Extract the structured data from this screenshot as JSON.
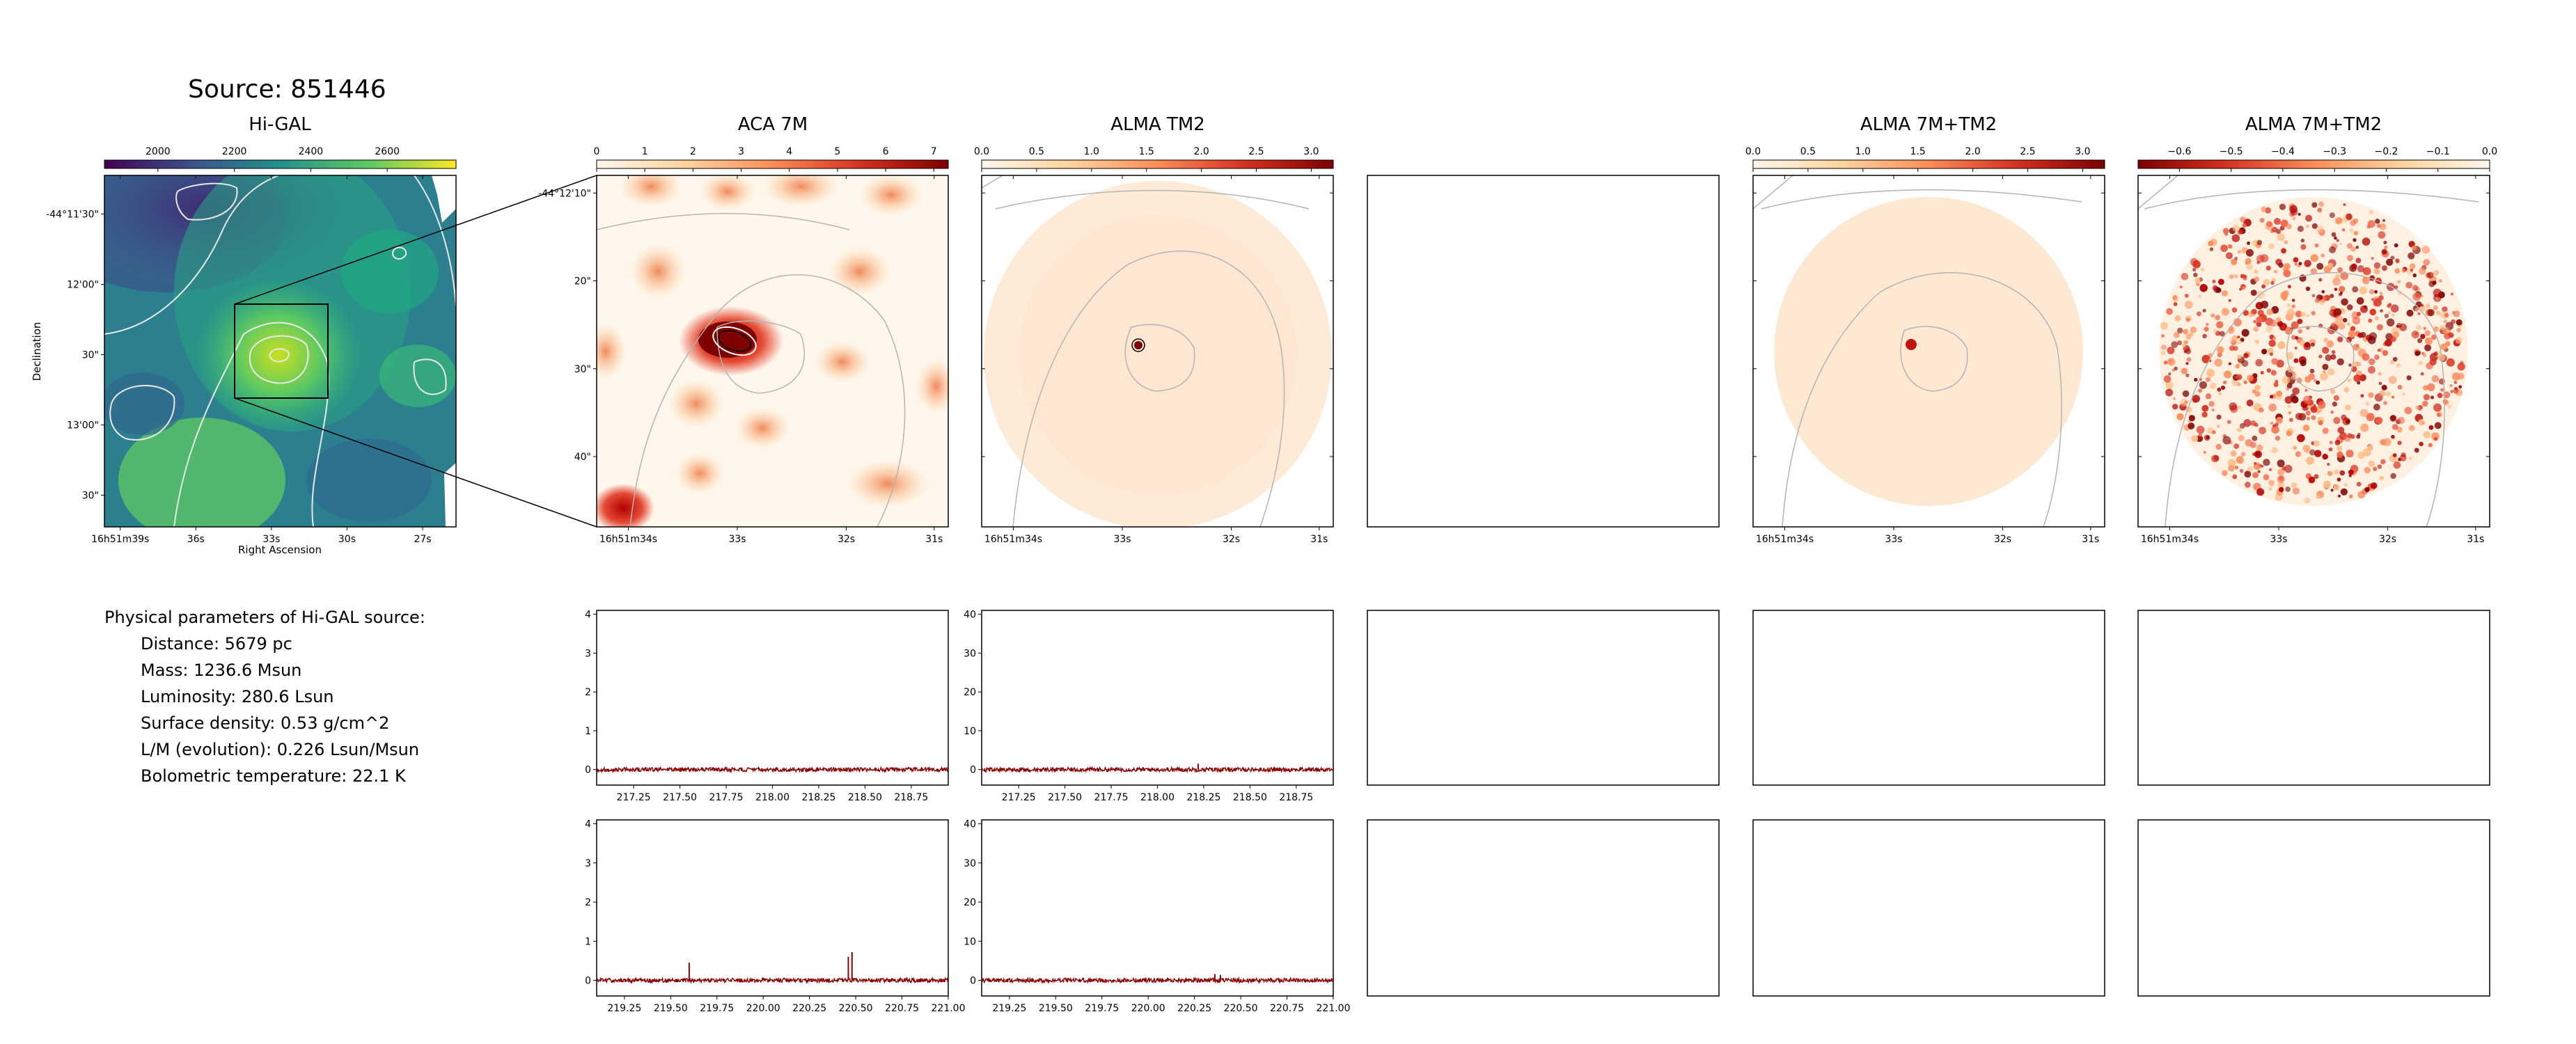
{
  "source_title": "Source: 851446",
  "physical_params": {
    "heading": "Physical parameters of Hi-GAL source:",
    "lines": [
      "Distance: 5679 pc",
      "Mass: 1236.6 Msun",
      "Luminosity: 280.6 Lsun",
      "Surface density: 0.53 g/cm^2",
      "L/M (evolution): 0.226 Lsun/Msun",
      "Bolometric temperature: 22.1 K"
    ]
  },
  "colors": {
    "spectrum_line": "#8b0000",
    "contour_light": "#e8e8e8",
    "contour_gray": "#b4b4b4"
  },
  "chart_data": [
    {
      "type": "heatmap",
      "title": "Hi-GAL",
      "colormap": "viridis",
      "colorbar_ticks": [
        "2000",
        "2200",
        "2400",
        "2600"
      ],
      "colorbar_range": [
        1860,
        2780
      ],
      "xlabel": "Right Ascension",
      "ylabel": "Declination",
      "x_ticks": [
        "16h51m39s",
        "36s",
        "33s",
        "30s",
        "27s"
      ],
      "y_ticks": [
        "-44°11'30\"",
        "12'00\"",
        "30\"",
        "13'00\"",
        "30\""
      ],
      "zoom_box": true
    },
    {
      "type": "heatmap",
      "title": "ACA 7M",
      "colormap": "OrRd",
      "colorbar_ticks": [
        "0",
        "1",
        "2",
        "3",
        "4",
        "5",
        "6",
        "7"
      ],
      "colorbar_range": [
        0,
        7.3
      ],
      "x_ticks": [
        "16h51m34s",
        "33s",
        "32s",
        "31s"
      ],
      "y_ticks": [
        "-44°12'10\"",
        "20\"",
        "30\"",
        "40\""
      ]
    },
    {
      "type": "heatmap",
      "title": "ALMA TM2",
      "colormap": "OrRd",
      "colorbar_ticks": [
        "0.0",
        "0.5",
        "1.0",
        "1.5",
        "2.0",
        "2.5",
        "3.0"
      ],
      "colorbar_range": [
        0,
        3.2
      ],
      "x_ticks": [
        "16h51m34s",
        "33s",
        "32s",
        "31s"
      ]
    },
    {
      "type": "heatmap",
      "title": "ALMA 7M+TM2",
      "colormap": "OrRd",
      "colorbar_ticks": [
        "0.0",
        "0.5",
        "1.0",
        "1.5",
        "2.0",
        "2.5",
        "3.0"
      ],
      "colorbar_range": [
        0,
        3.2
      ],
      "x_ticks": [
        "16h51m34s",
        "33s",
        "32s",
        "31s"
      ]
    },
    {
      "type": "heatmap",
      "title": "ALMA 7M+TM2",
      "colormap": "OrRd_r",
      "colorbar_ticks": [
        "−0.6",
        "−0.5",
        "−0.4",
        "−0.3",
        "−0.2",
        "−0.1",
        "0.0"
      ],
      "colorbar_range": [
        -0.68,
        0.0
      ],
      "x_ticks": [
        "16h51m34s",
        "33s",
        "32s",
        "31s"
      ]
    },
    {
      "type": "line",
      "panel": "ACA 7M spectrum (lower band)",
      "x_ticks": [
        "217.25",
        "217.50",
        "217.75",
        "218.00",
        "218.25",
        "218.50",
        "218.75"
      ],
      "xlim": [
        217.05,
        218.95
      ],
      "y_ticks": [
        "0",
        "1",
        "2",
        "3",
        "4"
      ],
      "ylim": [
        -0.4,
        4.1
      ],
      "baseline": 0,
      "spikes": []
    },
    {
      "type": "line",
      "panel": "ALMA TM2 spectrum (lower band)",
      "x_ticks": [
        "217.25",
        "217.50",
        "217.75",
        "218.00",
        "218.25",
        "218.50",
        "218.75"
      ],
      "xlim": [
        217.05,
        218.95
      ],
      "y_ticks": [
        "0",
        "10",
        "20",
        "30",
        "40"
      ],
      "ylim": [
        -4,
        41
      ],
      "baseline": 0,
      "spikes": [
        [
          218.22,
          1.5
        ]
      ]
    },
    {
      "type": "line",
      "panel": "ACA 7M spectrum (upper band)",
      "x_ticks": [
        "219.25",
        "219.50",
        "219.75",
        "220.00",
        "220.25",
        "220.50",
        "220.75",
        "221.00"
      ],
      "xlim": [
        219.1,
        221.0
      ],
      "y_ticks": [
        "0",
        "1",
        "2",
        "3",
        "4"
      ],
      "ylim": [
        -0.4,
        4.1
      ],
      "baseline": 0,
      "spikes": [
        [
          219.6,
          0.45
        ],
        [
          220.46,
          0.6
        ],
        [
          220.48,
          0.72
        ]
      ]
    },
    {
      "type": "line",
      "panel": "ALMA TM2 spectrum (upper band)",
      "x_ticks": [
        "219.25",
        "219.50",
        "219.75",
        "220.00",
        "220.25",
        "220.50",
        "220.75",
        "221.00"
      ],
      "xlim": [
        219.1,
        221.0
      ],
      "y_ticks": [
        "0",
        "10",
        "20",
        "30",
        "40"
      ],
      "ylim": [
        -4,
        41
      ],
      "baseline": 0,
      "spikes": [
        [
          220.36,
          1.6
        ],
        [
          220.39,
          1.4
        ]
      ]
    }
  ]
}
